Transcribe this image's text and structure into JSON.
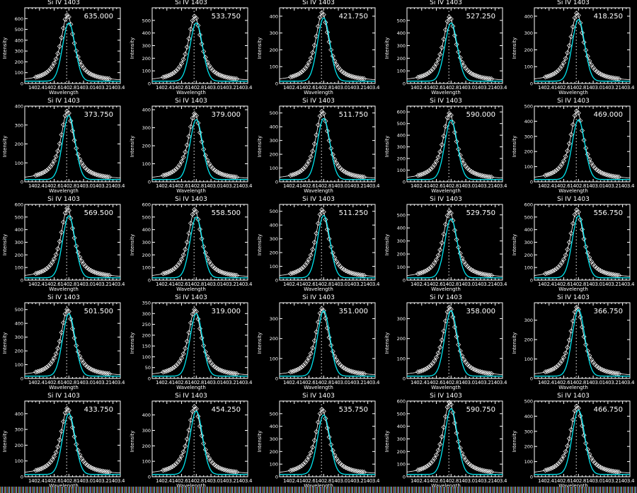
{
  "chart_data": {
    "type": "line",
    "layout": {
      "rows": 5,
      "cols": 5,
      "background": "#000000",
      "foreground": "#ffffff",
      "fit_color": "#00e5ee"
    },
    "shared": {
      "title": "Si IV 1403",
      "xlabel": "Wavelength",
      "ylabel": "Intensity",
      "xticks": [
        "1402.4",
        "1402.6",
        "1402.8",
        "1403.0",
        "1403.2",
        "1403.4"
      ],
      "xlim": [
        1402.2,
        1403.5
      ],
      "line_center": 1402.77,
      "series": [
        "observed profile (diamonds)",
        "Gaussian fit (cyan line)",
        "rest wavelength (dotted vertical)"
      ]
    },
    "panels": [
      {
        "value": "635.000",
        "peak": 635,
        "fit_peak": 560,
        "ylim": [
          0,
          700
        ],
        "yticks": [
          0,
          100,
          200,
          300,
          400,
          500,
          600
        ]
      },
      {
        "value": "533.750",
        "peak": 534,
        "fit_peak": 480,
        "ylim": [
          0,
          600
        ],
        "yticks": [
          0,
          100,
          200,
          300,
          400,
          500
        ]
      },
      {
        "value": "421.750",
        "peak": 422,
        "fit_peak": 390,
        "ylim": [
          0,
          450
        ],
        "yticks": [
          0,
          100,
          200,
          300,
          400
        ]
      },
      {
        "value": "527.250",
        "peak": 527,
        "fit_peak": 480,
        "ylim": [
          0,
          600
        ],
        "yticks": [
          0,
          100,
          200,
          300,
          400,
          500
        ]
      },
      {
        "value": "418.250",
        "peak": 418,
        "fit_peak": 380,
        "ylim": [
          0,
          450
        ],
        "yticks": [
          0,
          100,
          200,
          300,
          400
        ]
      },
      {
        "value": "373.750",
        "peak": 374,
        "fit_peak": 350,
        "ylim": [
          0,
          400
        ],
        "yticks": [
          0,
          100,
          200,
          300,
          400
        ]
      },
      {
        "value": "379.000",
        "peak": 379,
        "fit_peak": 345,
        "ylim": [
          0,
          420
        ],
        "yticks": [
          0,
          100,
          200,
          300,
          400
        ]
      },
      {
        "value": "511.750",
        "peak": 512,
        "fit_peak": 460,
        "ylim": [
          0,
          550
        ],
        "yticks": [
          0,
          100,
          200,
          300,
          400,
          500
        ]
      },
      {
        "value": "590.000",
        "peak": 590,
        "fit_peak": 530,
        "ylim": [
          0,
          650
        ],
        "yticks": [
          0,
          100,
          200,
          300,
          400,
          500,
          600
        ]
      },
      {
        "value": "469.000",
        "peak": 469,
        "fit_peak": 410,
        "ylim": [
          0,
          500
        ],
        "yticks": [
          0,
          100,
          200,
          300,
          400,
          500
        ]
      },
      {
        "value": "569.500",
        "peak": 570,
        "fit_peak": 510,
        "ylim": [
          0,
          600
        ],
        "yticks": [
          0,
          100,
          200,
          300,
          400,
          500,
          600
        ]
      },
      {
        "value": "558.500",
        "peak": 559,
        "fit_peak": 500,
        "ylim": [
          0,
          600
        ],
        "yticks": [
          0,
          100,
          200,
          300,
          400,
          500,
          600
        ]
      },
      {
        "value": "511.250",
        "peak": 511,
        "fit_peak": 470,
        "ylim": [
          0,
          550
        ],
        "yticks": [
          0,
          100,
          200,
          300,
          400,
          500
        ]
      },
      {
        "value": "529.750",
        "peak": 530,
        "fit_peak": 470,
        "ylim": [
          0,
          580
        ],
        "yticks": [
          0,
          100,
          200,
          300,
          400,
          500
        ]
      },
      {
        "value": "556.750",
        "peak": 557,
        "fit_peak": 510,
        "ylim": [
          0,
          600
        ],
        "yticks": [
          0,
          100,
          200,
          300,
          400,
          500,
          600
        ]
      },
      {
        "value": "501.500",
        "peak": 502,
        "fit_peak": 470,
        "ylim": [
          0,
          550
        ],
        "yticks": [
          0,
          100,
          200,
          300,
          400,
          500
        ]
      },
      {
        "value": "319.000",
        "peak": 319,
        "fit_peak": 300,
        "ylim": [
          0,
          350
        ],
        "yticks": [
          0,
          50,
          100,
          150,
          200,
          250,
          300,
          350
        ]
      },
      {
        "value": "351.000",
        "peak": 351,
        "fit_peak": 340,
        "ylim": [
          0,
          380
        ],
        "yticks": [
          0,
          100,
          200,
          300
        ]
      },
      {
        "value": "358.000",
        "peak": 358,
        "fit_peak": 340,
        "ylim": [
          0,
          380
        ],
        "yticks": [
          0,
          100,
          200,
          300
        ]
      },
      {
        "value": "366.750",
        "peak": 367,
        "fit_peak": 355,
        "ylim": [
          0,
          390
        ],
        "yticks": [
          0,
          100,
          200,
          300
        ]
      },
      {
        "value": "433.750",
        "peak": 434,
        "fit_peak": 400,
        "ylim": [
          0,
          480
        ],
        "yticks": [
          0,
          100,
          200,
          300,
          400
        ]
      },
      {
        "value": "454.250",
        "peak": 454,
        "fit_peak": 425,
        "ylim": [
          0,
          490
        ],
        "yticks": [
          0,
          100,
          200,
          300,
          400
        ]
      },
      {
        "value": "535.750",
        "peak": 536,
        "fit_peak": 490,
        "ylim": [
          0,
          600
        ],
        "yticks": [
          0,
          100,
          200,
          300,
          400,
          500
        ]
      },
      {
        "value": "590.750",
        "peak": 591,
        "fit_peak": 540,
        "ylim": [
          0,
          600
        ],
        "yticks": [
          0,
          100,
          200,
          300,
          400,
          500,
          600
        ]
      },
      {
        "value": "466.750",
        "peak": 467,
        "fit_peak": 440,
        "ylim": [
          0,
          500
        ],
        "yticks": [
          0,
          100,
          200,
          300,
          400,
          500
        ]
      }
    ]
  }
}
